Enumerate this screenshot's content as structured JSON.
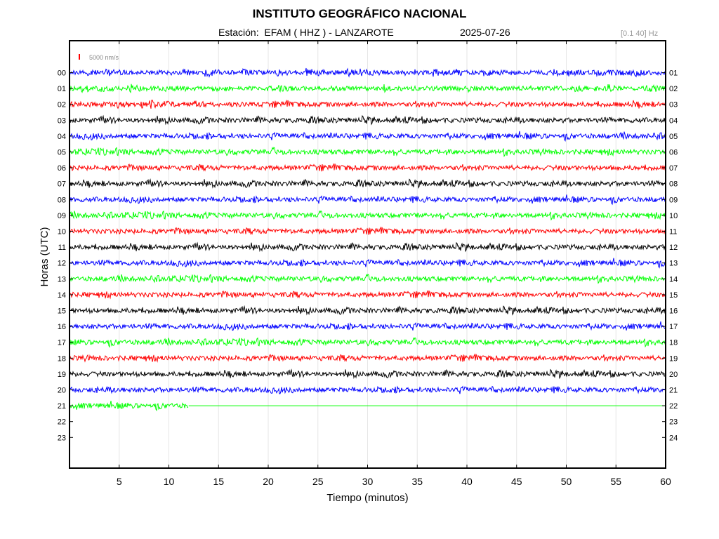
{
  "header": {
    "title": "INSTITUTO GEOGRÁFICO NACIONAL",
    "subtitle": "Estación:  EFAM ( HHZ ) - LANZAROTE",
    "date": "2025-07-26",
    "filter": "[0.1 40] Hz"
  },
  "chart_data": {
    "type": "line",
    "title": "INSTITUTO GEOGRÁFICO NACIONAL",
    "xlabel": "Tiempo (minutos)",
    "ylabel": "Horas (UTC)",
    "xlim": [
      0,
      60
    ],
    "x_ticks": [
      5,
      10,
      15,
      20,
      25,
      30,
      35,
      40,
      45,
      50,
      55,
      60
    ],
    "grid": true,
    "scale_bar": {
      "label": "5000 nm/s",
      "color": "#ff0000"
    },
    "hours_left": [
      "00",
      "01",
      "02",
      "03",
      "04",
      "05",
      "06",
      "07",
      "08",
      "09",
      "10",
      "11",
      "12",
      "13",
      "14",
      "15",
      "16",
      "17",
      "18",
      "19",
      "20",
      "21",
      "22",
      "23"
    ],
    "hours_right": [
      "01",
      "02",
      "03",
      "04",
      "05",
      "06",
      "07",
      "08",
      "09",
      "10",
      "11",
      "12",
      "13",
      "14",
      "15",
      "16",
      "17",
      "18",
      "19",
      "20",
      "21",
      "22",
      "23",
      "24"
    ],
    "trace_colors": [
      "#0000ff",
      "#00ff00",
      "#ff0000",
      "#000000"
    ],
    "series": [
      {
        "hour": "00",
        "color": "#0000ff",
        "end_minute": 60
      },
      {
        "hour": "01",
        "color": "#00ff00",
        "end_minute": 60
      },
      {
        "hour": "02",
        "color": "#ff0000",
        "end_minute": 60
      },
      {
        "hour": "03",
        "color": "#000000",
        "end_minute": 60
      },
      {
        "hour": "04",
        "color": "#0000ff",
        "end_minute": 60
      },
      {
        "hour": "05",
        "color": "#00ff00",
        "end_minute": 60
      },
      {
        "hour": "06",
        "color": "#ff0000",
        "end_minute": 60
      },
      {
        "hour": "07",
        "color": "#000000",
        "end_minute": 60
      },
      {
        "hour": "08",
        "color": "#0000ff",
        "end_minute": 60
      },
      {
        "hour": "09",
        "color": "#00ff00",
        "end_minute": 60
      },
      {
        "hour": "10",
        "color": "#ff0000",
        "end_minute": 60
      },
      {
        "hour": "11",
        "color": "#000000",
        "end_minute": 60
      },
      {
        "hour": "12",
        "color": "#0000ff",
        "end_minute": 60
      },
      {
        "hour": "13",
        "color": "#00ff00",
        "end_minute": 60
      },
      {
        "hour": "14",
        "color": "#ff0000",
        "end_minute": 60
      },
      {
        "hour": "15",
        "color": "#000000",
        "end_minute": 60
      },
      {
        "hour": "16",
        "color": "#0000ff",
        "end_minute": 60
      },
      {
        "hour": "17",
        "color": "#00ff00",
        "end_minute": 60
      },
      {
        "hour": "18",
        "color": "#ff0000",
        "end_minute": 60
      },
      {
        "hour": "19",
        "color": "#000000",
        "end_minute": 60
      },
      {
        "hour": "20",
        "color": "#0000ff",
        "end_minute": 60
      },
      {
        "hour": "21",
        "color": "#00ff00",
        "end_minute": 12,
        "flat_to_minute": 60
      }
    ]
  }
}
